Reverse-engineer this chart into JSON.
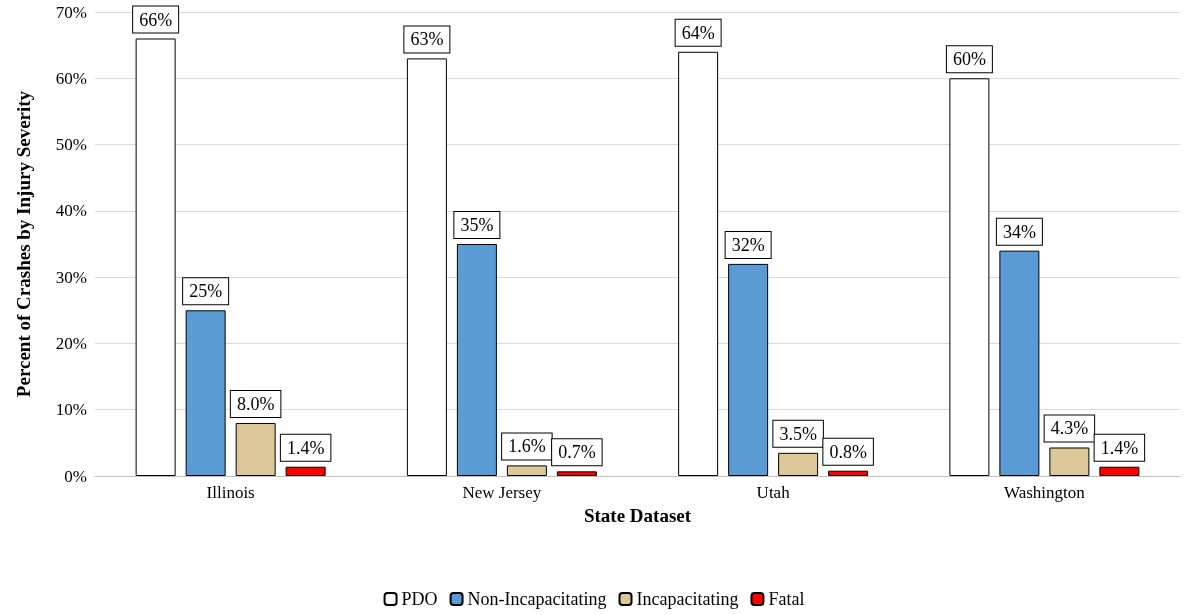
{
  "chart_data": {
    "type": "bar",
    "xlabel": "State Dataset",
    "ylabel": "Percent of Crashes by Injury Severity",
    "categories": [
      "Illinois",
      "New Jersey",
      "Utah",
      "Washington"
    ],
    "series": [
      {
        "name": "PDO",
        "color": "#ffffff",
        "values": [
          66,
          63,
          64,
          60
        ],
        "value_labels": [
          "66%",
          "63%",
          "64%",
          "60%"
        ]
      },
      {
        "name": "Non-Incapacitating",
        "color": "#5b9bd5",
        "values": [
          25,
          35,
          32,
          34
        ],
        "value_labels": [
          "25%",
          "35%",
          "32%",
          "34%"
        ]
      },
      {
        "name": "Incapacitating",
        "color": "#dcc799",
        "values": [
          8.0,
          1.6,
          3.5,
          4.3
        ],
        "value_labels": [
          "8.0%",
          "1.6%",
          "3.5%",
          "4.3%"
        ]
      },
      {
        "name": "Fatal",
        "color": "#ff0000",
        "values": [
          1.4,
          0.7,
          0.8,
          1.4
        ],
        "value_labels": [
          "1.4%",
          "0.7%",
          "0.8%",
          "1.4%"
        ]
      }
    ],
    "ylim": [
      0,
      70
    ],
    "yticks": [
      {
        "value": 0,
        "label": "0%"
      },
      {
        "value": 10,
        "label": "10%"
      },
      {
        "value": 20,
        "label": "20%"
      },
      {
        "value": 30,
        "label": "30%"
      },
      {
        "value": 40,
        "label": "40%"
      },
      {
        "value": 50,
        "label": "50%"
      },
      {
        "value": 60,
        "label": "60%"
      },
      {
        "value": 70,
        "label": "70%"
      }
    ],
    "grid": "y",
    "legend": "bottom"
  }
}
